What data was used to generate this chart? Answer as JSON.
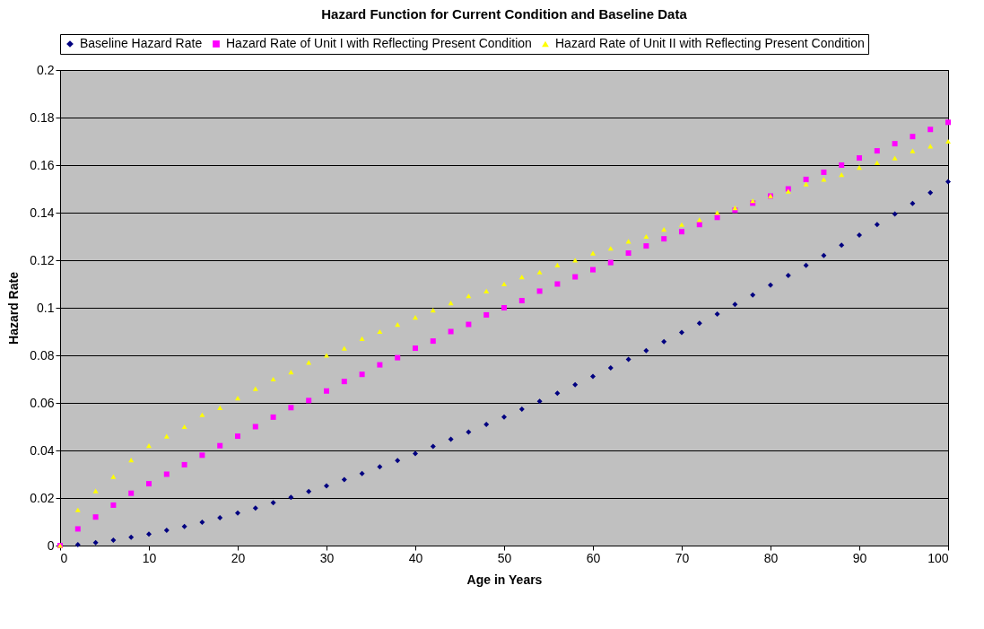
{
  "chart_data": {
    "type": "scatter",
    "title": "Hazard Function for Current Condition and Baseline Data",
    "xlabel": "Age in Years",
    "ylabel": "Hazard Rate",
    "x": [
      0,
      2,
      4,
      6,
      8,
      10,
      12,
      14,
      16,
      18,
      20,
      22,
      24,
      26,
      28,
      30,
      32,
      34,
      36,
      38,
      40,
      42,
      44,
      46,
      48,
      50,
      52,
      54,
      56,
      58,
      60,
      62,
      64,
      66,
      68,
      70,
      72,
      74,
      76,
      78,
      80,
      82,
      84,
      86,
      88,
      90,
      92,
      94,
      96,
      98,
      100
    ],
    "series": [
      {
        "name": "Baseline Hazard Rate",
        "color": "#000080",
        "marker": "diamond",
        "values": [
          null,
          0.0004,
          0.0012,
          0.0023,
          0.0035,
          0.0048,
          0.0064,
          0.008,
          0.0098,
          0.0117,
          0.0137,
          0.0158,
          0.018,
          0.0203,
          0.0227,
          0.0251,
          0.0277,
          0.0303,
          0.0331,
          0.0358,
          0.0387,
          0.0417,
          0.0447,
          0.0477,
          0.0509,
          0.0541,
          0.0574,
          0.0607,
          0.0641,
          0.0676,
          0.0711,
          0.0747,
          0.0783,
          0.082,
          0.0858,
          0.0896,
          0.0935,
          0.0974,
          0.1014,
          0.1054,
          0.1095,
          0.1136,
          0.1178,
          0.122,
          0.1263,
          0.1306,
          0.135,
          0.1394,
          0.1439,
          0.1484,
          0.153
        ]
      },
      {
        "name": "Hazard Rate of Unit I with Reflecting Present Condition",
        "color": "#ff00ff",
        "marker": "square",
        "values": [
          0,
          0.007,
          0.012,
          0.017,
          0.022,
          0.026,
          0.03,
          0.034,
          0.038,
          0.042,
          0.046,
          0.05,
          0.054,
          0.058,
          0.061,
          0.065,
          0.069,
          0.072,
          0.076,
          0.079,
          0.083,
          0.086,
          0.09,
          0.093,
          0.097,
          0.1,
          0.103,
          0.107,
          0.11,
          0.113,
          0.116,
          0.119,
          0.123,
          0.126,
          0.129,
          0.132,
          0.135,
          0.138,
          0.141,
          0.144,
          0.147,
          0.15,
          0.154,
          0.157,
          0.16,
          0.163,
          0.166,
          0.169,
          0.172,
          0.175,
          0.178
        ]
      },
      {
        "name": "Hazard Rate of Unit II with Reflecting Present Condition",
        "color": "#ffff00",
        "marker": "triangle",
        "values": [
          0,
          0.015,
          0.023,
          0.029,
          0.036,
          0.042,
          0.046,
          0.05,
          0.055,
          0.058,
          0.062,
          0.066,
          0.07,
          0.073,
          0.077,
          0.08,
          0.083,
          0.087,
          0.09,
          0.093,
          0.096,
          0.099,
          0.102,
          0.105,
          0.107,
          0.11,
          0.113,
          0.115,
          0.118,
          0.12,
          0.123,
          0.125,
          0.128,
          0.13,
          0.133,
          0.135,
          0.137,
          0.14,
          0.142,
          0.145,
          0.147,
          0.149,
          0.152,
          0.154,
          0.156,
          0.159,
          0.161,
          0.163,
          0.166,
          0.168,
          0.17
        ]
      }
    ],
    "xlim": [
      0,
      100
    ],
    "xticks": [
      0,
      10,
      20,
      30,
      40,
      50,
      60,
      70,
      80,
      90,
      100
    ],
    "ylim": [
      0,
      0.2
    ],
    "yticks": [
      0,
      0.02,
      0.04,
      0.06,
      0.08,
      0.1,
      0.12,
      0.14,
      0.16,
      0.18,
      0.2
    ],
    "grid": "y",
    "legend": "top"
  }
}
